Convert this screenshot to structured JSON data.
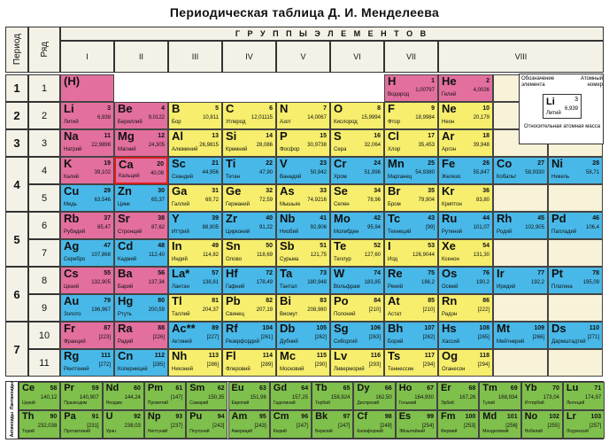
{
  "title": "Периодическая таблица Д. И. Менделеева",
  "header": {
    "groups_label": "Г Р У П П Ы   Э Л Е М Е Н Т О В",
    "period_label": "Период",
    "row_label": "Ряд",
    "groups": [
      "I",
      "II",
      "III",
      "IV",
      "V",
      "VI",
      "VII",
      "VIII"
    ]
  },
  "periods": [
    "1",
    "2",
    "3",
    "4",
    "5",
    "6",
    "7"
  ],
  "rows": [
    "1",
    "2",
    "3",
    "4",
    "5",
    "6",
    "7",
    "8",
    "9",
    "10",
    "11"
  ],
  "legend": {
    "designation": "Обозначение элемента",
    "atomic_number": "Атомный номер",
    "relative_mass": "Относительная атомная масса",
    "example_symbol": "Li",
    "example_number": "3",
    "example_mass": "6,939",
    "example_name": "Литий"
  },
  "elements": [
    {
      "sym": "(H)",
      "num": "",
      "mass": "",
      "name": "",
      "cat": "s"
    },
    {
      "sym": "H",
      "num": "1",
      "mass": "1,00797",
      "name": "Водород",
      "cat": "s"
    },
    {
      "sym": "He",
      "num": "2",
      "mass": "4,0026",
      "name": "Гелий",
      "cat": "s"
    },
    {
      "sym": "Li",
      "num": "3",
      "mass": "6,939",
      "name": "Литий",
      "cat": "s"
    },
    {
      "sym": "Be",
      "num": "4",
      "mass": "9,0122",
      "name": "Бериллий",
      "cat": "s"
    },
    {
      "sym": "B",
      "num": "5",
      "mass": "10,811",
      "name": "Бор",
      "cat": "p"
    },
    {
      "sym": "C",
      "num": "6",
      "mass": "12,01115",
      "name": "Углерод",
      "cat": "p"
    },
    {
      "sym": "N",
      "num": "7",
      "mass": "14,0067",
      "name": "Азот",
      "cat": "p"
    },
    {
      "sym": "O",
      "num": "8",
      "mass": "15,9994",
      "name": "Кислород",
      "cat": "p"
    },
    {
      "sym": "F",
      "num": "9",
      "mass": "18,9984",
      "name": "Фтор",
      "cat": "p"
    },
    {
      "sym": "Ne",
      "num": "10",
      "mass": "20,179",
      "name": "Неон",
      "cat": "p"
    },
    {
      "sym": "Na",
      "num": "11",
      "mass": "22,9898",
      "name": "Натрий",
      "cat": "s"
    },
    {
      "sym": "Mg",
      "num": "12",
      "mass": "24,305",
      "name": "Магний",
      "cat": "s"
    },
    {
      "sym": "Al",
      "num": "13",
      "mass": "26,9815",
      "name": "Алюминий",
      "cat": "p"
    },
    {
      "sym": "Si",
      "num": "14",
      "mass": "28,086",
      "name": "Кремний",
      "cat": "p"
    },
    {
      "sym": "P",
      "num": "15",
      "mass": "30,9738",
      "name": "Фосфор",
      "cat": "p"
    },
    {
      "sym": "S",
      "num": "16",
      "mass": "32,064",
      "name": "Сера",
      "cat": "p"
    },
    {
      "sym": "Cl",
      "num": "17",
      "mass": "35,453",
      "name": "Хлор",
      "cat": "p"
    },
    {
      "sym": "Ar",
      "num": "18",
      "mass": "39,948",
      "name": "Аргон",
      "cat": "p"
    },
    {
      "sym": "K",
      "num": "19",
      "mass": "39,102",
      "name": "Калий",
      "cat": "s"
    },
    {
      "sym": "Ca",
      "num": "20",
      "mass": "40,08",
      "name": "Кальций",
      "cat": "s"
    },
    {
      "sym": "Sc",
      "num": "21",
      "mass": "44,956",
      "name": "Скандий",
      "cat": "d"
    },
    {
      "sym": "Ti",
      "num": "22",
      "mass": "47,90",
      "name": "Титан",
      "cat": "d"
    },
    {
      "sym": "V",
      "num": "23",
      "mass": "50,942",
      "name": "Ванадий",
      "cat": "d"
    },
    {
      "sym": "Cr",
      "num": "24",
      "mass": "51,996",
      "name": "Хром",
      "cat": "d"
    },
    {
      "sym": "Mn",
      "num": "25",
      "mass": "54,9380",
      "name": "Марганец",
      "cat": "d"
    },
    {
      "sym": "Fe",
      "num": "26",
      "mass": "55,847",
      "name": "Железо",
      "cat": "d"
    },
    {
      "sym": "Co",
      "num": "27",
      "mass": "58,9330",
      "name": "Кобальт",
      "cat": "d"
    },
    {
      "sym": "Ni",
      "num": "28",
      "mass": "58,71",
      "name": "Никель",
      "cat": "d"
    },
    {
      "sym": "Cu",
      "num": "29",
      "mass": "63,546",
      "name": "Медь",
      "cat": "d"
    },
    {
      "sym": "Zn",
      "num": "30",
      "mass": "65,37",
      "name": "Цинк",
      "cat": "d"
    },
    {
      "sym": "Ga",
      "num": "31",
      "mass": "69,72",
      "name": "Галлий",
      "cat": "p"
    },
    {
      "sym": "Ge",
      "num": "32",
      "mass": "72,59",
      "name": "Германий",
      "cat": "p"
    },
    {
      "sym": "As",
      "num": "33",
      "mass": "74,9216",
      "name": "Мышьяк",
      "cat": "p"
    },
    {
      "sym": "Se",
      "num": "34",
      "mass": "78,96",
      "name": "Селен",
      "cat": "p"
    },
    {
      "sym": "Br",
      "num": "35",
      "mass": "79,904",
      "name": "Бром",
      "cat": "p"
    },
    {
      "sym": "Kr",
      "num": "36",
      "mass": "83,80",
      "name": "Криптон",
      "cat": "p"
    },
    {
      "sym": "Rb",
      "num": "37",
      "mass": "85,47",
      "name": "Рубидий",
      "cat": "s"
    },
    {
      "sym": "Sr",
      "num": "38",
      "mass": "87,62",
      "name": "Стронций",
      "cat": "s"
    },
    {
      "sym": "Y",
      "num": "39",
      "mass": "88,905",
      "name": "Иттрий",
      "cat": "d"
    },
    {
      "sym": "Zr",
      "num": "40",
      "mass": "91,22",
      "name": "Цирконий",
      "cat": "d"
    },
    {
      "sym": "Nb",
      "num": "41",
      "mass": "92,906",
      "name": "Ниобий",
      "cat": "d"
    },
    {
      "sym": "Mo",
      "num": "42",
      "mass": "95,94",
      "name": "Молибден",
      "cat": "d"
    },
    {
      "sym": "Tc",
      "num": "43",
      "mass": "[99]",
      "name": "Технеций",
      "cat": "d"
    },
    {
      "sym": "Ru",
      "num": "44",
      "mass": "101,07",
      "name": "Рутений",
      "cat": "d"
    },
    {
      "sym": "Rh",
      "num": "45",
      "mass": "102,905",
      "name": "Родий",
      "cat": "d"
    },
    {
      "sym": "Pd",
      "num": "46",
      "mass": "106,4",
      "name": "Палладий",
      "cat": "d"
    },
    {
      "sym": "Ag",
      "num": "47",
      "mass": "107,868",
      "name": "Серебро",
      "cat": "d"
    },
    {
      "sym": "Cd",
      "num": "48",
      "mass": "112,40",
      "name": "Кадмий",
      "cat": "d"
    },
    {
      "sym": "In",
      "num": "49",
      "mass": "114,82",
      "name": "Индий",
      "cat": "p"
    },
    {
      "sym": "Sn",
      "num": "50",
      "mass": "118,69",
      "name": "Олово",
      "cat": "p"
    },
    {
      "sym": "Sb",
      "num": "51",
      "mass": "121,75",
      "name": "Сурьма",
      "cat": "p"
    },
    {
      "sym": "Te",
      "num": "52",
      "mass": "127,60",
      "name": "Теллур",
      "cat": "p"
    },
    {
      "sym": "I",
      "num": "53",
      "mass": "126,9044",
      "name": "Иод",
      "cat": "p"
    },
    {
      "sym": "Xe",
      "num": "54",
      "mass": "131,30",
      "name": "Ксенон",
      "cat": "p"
    },
    {
      "sym": "Cs",
      "num": "55",
      "mass": "132,905",
      "name": "Цезий",
      "cat": "s"
    },
    {
      "sym": "Ba",
      "num": "56",
      "mass": "137,34",
      "name": "Барий",
      "cat": "s"
    },
    {
      "sym": "La*",
      "num": "57",
      "mass": "138,81",
      "name": "Лантан",
      "cat": "d"
    },
    {
      "sym": "Hf",
      "num": "72",
      "mass": "178,49",
      "name": "Гафний",
      "cat": "d"
    },
    {
      "sym": "Ta",
      "num": "73",
      "mass": "180,948",
      "name": "Тантал",
      "cat": "d"
    },
    {
      "sym": "W",
      "num": "74",
      "mass": "183,85",
      "name": "Вольфрам",
      "cat": "d"
    },
    {
      "sym": "Re",
      "num": "75",
      "mass": "186,2",
      "name": "Рений",
      "cat": "d"
    },
    {
      "sym": "Os",
      "num": "76",
      "mass": "190,2",
      "name": "Осмий",
      "cat": "d"
    },
    {
      "sym": "Ir",
      "num": "77",
      "mass": "192,2",
      "name": "Иридий",
      "cat": "d"
    },
    {
      "sym": "Pt",
      "num": "78",
      "mass": "195,09",
      "name": "Платина",
      "cat": "d"
    },
    {
      "sym": "Au",
      "num": "79",
      "mass": "196,967",
      "name": "Золото",
      "cat": "d"
    },
    {
      "sym": "Hg",
      "num": "80",
      "mass": "200,59",
      "name": "Ртуть",
      "cat": "d"
    },
    {
      "sym": "Tl",
      "num": "81",
      "mass": "204,37",
      "name": "Таллий",
      "cat": "p"
    },
    {
      "sym": "Pb",
      "num": "82",
      "mass": "207,19",
      "name": "Свинец",
      "cat": "p"
    },
    {
      "sym": "Bi",
      "num": "83",
      "mass": "208,980",
      "name": "Висмут",
      "cat": "p"
    },
    {
      "sym": "Po",
      "num": "84",
      "mass": "[210]",
      "name": "Полоний",
      "cat": "p"
    },
    {
      "sym": "At",
      "num": "85",
      "mass": "[210]",
      "name": "Астат",
      "cat": "p"
    },
    {
      "sym": "Rn",
      "num": "86",
      "mass": "[222]",
      "name": "Радон",
      "cat": "p"
    },
    {
      "sym": "Fr",
      "num": "87",
      "mass": "[223]",
      "name": "Франций",
      "cat": "s"
    },
    {
      "sym": "Ra",
      "num": "88",
      "mass": "[226]",
      "name": "Радий",
      "cat": "s"
    },
    {
      "sym": "Ac**",
      "num": "89",
      "mass": "[227]",
      "name": "Актиний",
      "cat": "d"
    },
    {
      "sym": "Rf",
      "num": "104",
      "mass": "[261]",
      "name": "Резерфордий",
      "cat": "d"
    },
    {
      "sym": "Db",
      "num": "105",
      "mass": "[262]",
      "name": "Дубний",
      "cat": "d"
    },
    {
      "sym": "Sg",
      "num": "106",
      "mass": "[263]",
      "name": "Сиборгий",
      "cat": "d"
    },
    {
      "sym": "Bh",
      "num": "107",
      "mass": "[262]",
      "name": "Борий",
      "cat": "d"
    },
    {
      "sym": "Hs",
      "num": "108",
      "mass": "[265]",
      "name": "Хассий",
      "cat": "d"
    },
    {
      "sym": "Mt",
      "num": "109",
      "mass": "[266]",
      "name": "Мейтнерий",
      "cat": "d"
    },
    {
      "sym": "Ds",
      "num": "110",
      "mass": "[271]",
      "name": "Дармштадтий",
      "cat": "d"
    },
    {
      "sym": "Rg",
      "num": "111",
      "mass": "[272]",
      "name": "Рентгений",
      "cat": "d"
    },
    {
      "sym": "Cn",
      "num": "112",
      "mass": "[285]",
      "name": "Коперниций",
      "cat": "d"
    },
    {
      "sym": "Nh",
      "num": "113",
      "mass": "[286]",
      "name": "Нихоний",
      "cat": "p"
    },
    {
      "sym": "Fl",
      "num": "114",
      "mass": "[289]",
      "name": "Флеровий",
      "cat": "p"
    },
    {
      "sym": "Mc",
      "num": "115",
      "mass": "[290]",
      "name": "Московий",
      "cat": "p"
    },
    {
      "sym": "Lv",
      "num": "116",
      "mass": "[293]",
      "name": "Ливерморий",
      "cat": "p"
    },
    {
      "sym": "Ts",
      "num": "117",
      "mass": "[294]",
      "name": "Теннессин",
      "cat": "p"
    },
    {
      "sym": "Og",
      "num": "118",
      "mass": "[294]",
      "name": "Оганесон",
      "cat": "p"
    }
  ],
  "lanthanides_label": "Лантаноиды",
  "actinides_label": "Актиноиды",
  "lanthanides": [
    {
      "sym": "Ce",
      "num": "58",
      "mass": "140,12",
      "name": "Церий"
    },
    {
      "sym": "Pr",
      "num": "59",
      "mass": "140,907",
      "name": "Празеодим"
    },
    {
      "sym": "Nd",
      "num": "60",
      "mass": "144,24",
      "name": "Неодим"
    },
    {
      "sym": "Pm",
      "num": "61",
      "mass": "[147]",
      "name": "Прометий"
    },
    {
      "sym": "Sm",
      "num": "62",
      "mass": "150,35",
      "name": "Самарий"
    },
    {
      "sym": "Eu",
      "num": "63",
      "mass": "151,96",
      "name": "Европий"
    },
    {
      "sym": "Gd",
      "num": "64",
      "mass": "157,25",
      "name": "Гадолиний"
    },
    {
      "sym": "Tb",
      "num": "65",
      "mass": "158,924",
      "name": "Тербий"
    },
    {
      "sym": "Dy",
      "num": "66",
      "mass": "162,50",
      "name": "Диспрозий"
    },
    {
      "sym": "Ho",
      "num": "67",
      "mass": "164,930",
      "name": "Гольмий"
    },
    {
      "sym": "Er",
      "num": "68",
      "mass": "167,26",
      "name": "Эрбий"
    },
    {
      "sym": "Tm",
      "num": "69",
      "mass": "168,934",
      "name": "Тулий"
    },
    {
      "sym": "Yb",
      "num": "70",
      "mass": "173,04",
      "name": "Иттербий"
    },
    {
      "sym": "Lu",
      "num": "71",
      "mass": "174,97",
      "name": "Лютеций"
    }
  ],
  "actinides": [
    {
      "sym": "Th",
      "num": "90",
      "mass": "232,038",
      "name": "Торий"
    },
    {
      "sym": "Pa",
      "num": "91",
      "mass": "[231]",
      "name": "Протактиний"
    },
    {
      "sym": "U",
      "num": "92",
      "mass": "238,03",
      "name": "Уран"
    },
    {
      "sym": "Np",
      "num": "93",
      "mass": "[237]",
      "name": "Нептуний"
    },
    {
      "sym": "Pu",
      "num": "94",
      "mass": "[242]",
      "name": "Плутоний"
    },
    {
      "sym": "Am",
      "num": "95",
      "mass": "[243]",
      "name": "Америций"
    },
    {
      "sym": "Cm",
      "num": "96",
      "mass": "[247]",
      "name": "Кюрий"
    },
    {
      "sym": "Bk",
      "num": "97",
      "mass": "[247]",
      "name": "Берклий"
    },
    {
      "sym": "Cf",
      "num": "98",
      "mass": "[249]",
      "name": "Калифорний"
    },
    {
      "sym": "Es",
      "num": "99",
      "mass": "[254]",
      "name": "Эйнштейний"
    },
    {
      "sym": "Fm",
      "num": "100",
      "mass": "[253]",
      "name": "Фермий"
    },
    {
      "sym": "Md",
      "num": "101",
      "mass": "[256]",
      "name": "Менделевий"
    },
    {
      "sym": "No",
      "num": "102",
      "mass": "[255]",
      "name": "Нобелий"
    },
    {
      "sym": "Lr",
      "num": "103",
      "mass": "[257]",
      "name": "Лоуренсий"
    }
  ],
  "colors": {
    "s": "#e36f9e",
    "p": "#f6ee6c",
    "d": "#48b8e8",
    "f": "#7fbf4c",
    "highlight": "#d6201c"
  },
  "highlighted_element": "Ca"
}
